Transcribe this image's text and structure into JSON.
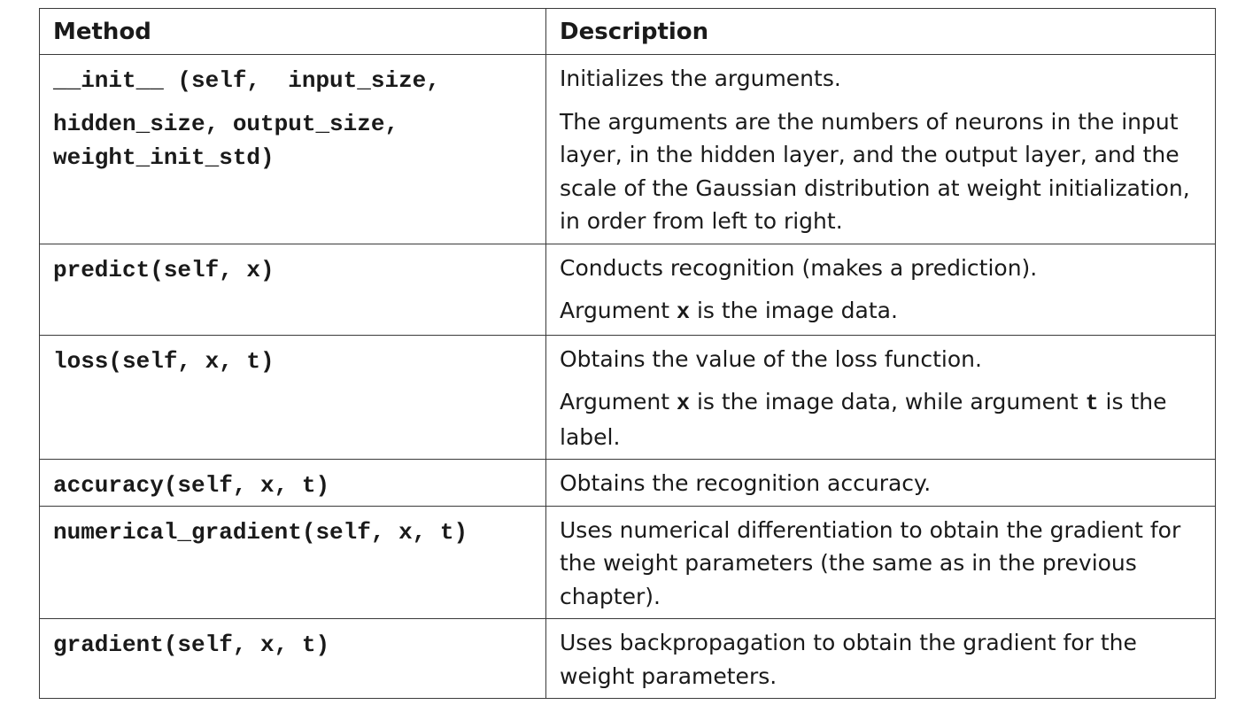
{
  "table": {
    "headers": {
      "method": "Method",
      "description": "Description"
    },
    "rows": [
      {
        "method_line1": "__init__ (self,  input_size,",
        "method_line2": "hidden_size, output_size,\nweight_init_std)",
        "desc_p1": "Initializes the arguments.",
        "desc_p2": "The arguments are the numbers of neurons in the input layer, in the hidden layer, and the output layer, and the scale of the Gaussian distribution at weight initialization, in order from left to right."
      },
      {
        "method": "predict(self, x)",
        "desc_p1": "Conducts recognition (makes a prediction).",
        "desc_p2_pre": "Argument ",
        "desc_p2_code": "x",
        "desc_p2_post": " is the image data."
      },
      {
        "method": "loss(self, x, t)",
        "desc_p1": "Obtains the value of the loss function.",
        "desc_p2_pre": "Argument ",
        "desc_p2_code1": "x",
        "desc_p2_mid": " is the image data, while argument ",
        "desc_p2_code2": "t",
        "desc_p2_post": " is the label."
      },
      {
        "method": "accuracy(self, x, t)",
        "desc_p1": "Obtains the recognition accuracy."
      },
      {
        "method": "numerical_gradient(self, x, t)",
        "desc_p1": "Uses numerical differentiation to obtain the gradient for the weight parameters (the same as in the previous chapter)."
      },
      {
        "method": "gradient(self, x, t)",
        "desc_p1": "Uses backpropagation to obtain the gradient for the weight parameters."
      }
    ]
  }
}
